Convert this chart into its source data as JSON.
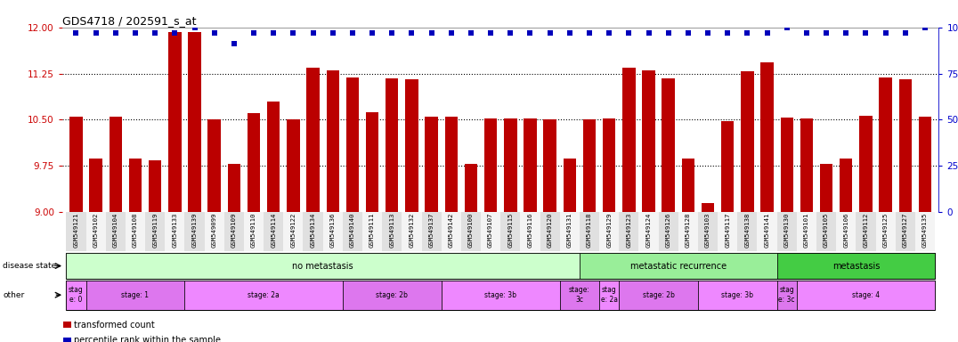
{
  "title": "GDS4718 / 202591_s_at",
  "samples": [
    "GSM549121",
    "GSM549102",
    "GSM549104",
    "GSM549108",
    "GSM549119",
    "GSM549133",
    "GSM549139",
    "GSM549099",
    "GSM549109",
    "GSM549110",
    "GSM549114",
    "GSM549122",
    "GSM549134",
    "GSM549136",
    "GSM549140",
    "GSM549111",
    "GSM549113",
    "GSM549132",
    "GSM549137",
    "GSM549142",
    "GSM549100",
    "GSM549107",
    "GSM549115",
    "GSM549116",
    "GSM549120",
    "GSM549131",
    "GSM549118",
    "GSM549129",
    "GSM549123",
    "GSM549124",
    "GSM549126",
    "GSM549128",
    "GSM549103",
    "GSM549117",
    "GSM549138",
    "GSM549141",
    "GSM549130",
    "GSM549101",
    "GSM549105",
    "GSM549106",
    "GSM549112",
    "GSM549125",
    "GSM549127",
    "GSM549135"
  ],
  "bar_values": [
    10.55,
    9.87,
    10.55,
    9.87,
    9.84,
    11.93,
    11.93,
    10.5,
    9.78,
    10.6,
    10.8,
    10.5,
    11.35,
    11.3,
    11.18,
    10.62,
    11.17,
    11.16,
    10.55,
    10.55,
    9.78,
    10.52,
    10.52,
    10.52,
    10.5,
    9.87,
    10.5,
    10.52,
    11.35,
    11.3,
    11.17,
    9.87,
    9.15,
    10.48,
    11.28,
    11.43,
    10.53,
    10.52,
    9.78,
    9.87,
    10.57,
    11.18,
    11.16,
    10.55
  ],
  "percentile_values": [
    97,
    97,
    97,
    97,
    97,
    97,
    100,
    97,
    91,
    97,
    97,
    97,
    97,
    97,
    97,
    97,
    97,
    97,
    97,
    97,
    97,
    97,
    97,
    97,
    97,
    97,
    97,
    97,
    97,
    97,
    97,
    97,
    97,
    97,
    97,
    97,
    100,
    97,
    97,
    97,
    97,
    97,
    97,
    100
  ],
  "ylim_left": [
    9.0,
    12.0
  ],
  "ylim_right": [
    0,
    100
  ],
  "yticks_left": [
    9.0,
    9.75,
    10.5,
    11.25,
    12.0
  ],
  "yticks_right": [
    0,
    25,
    50,
    75,
    100
  ],
  "dotted_lines": [
    9.75,
    10.5,
    11.25
  ],
  "bar_color": "#bb0000",
  "percentile_color": "#0000bb",
  "bar_bottom": 9.0,
  "disease_state_regions": [
    {
      "label": "no metastasis",
      "start": 0,
      "end": 26,
      "color": "#ccffcc"
    },
    {
      "label": "metastatic recurrence",
      "start": 26,
      "end": 36,
      "color": "#99ee99"
    },
    {
      "label": "metastasis",
      "start": 36,
      "end": 44,
      "color": "#44cc44"
    }
  ],
  "stage_regions": [
    {
      "label": "stag\ne: 0",
      "start": 0,
      "end": 1,
      "color": "#ee88ff"
    },
    {
      "label": "stage: 1",
      "start": 1,
      "end": 6,
      "color": "#dd77ee"
    },
    {
      "label": "stage: 2a",
      "start": 6,
      "end": 14,
      "color": "#ee88ff"
    },
    {
      "label": "stage: 2b",
      "start": 14,
      "end": 19,
      "color": "#dd77ee"
    },
    {
      "label": "stage: 3b",
      "start": 19,
      "end": 25,
      "color": "#ee88ff"
    },
    {
      "label": "stage:\n3c",
      "start": 25,
      "end": 27,
      "color": "#dd77ee"
    },
    {
      "label": "stag\ne: 2a",
      "start": 27,
      "end": 28,
      "color": "#ee88ff"
    },
    {
      "label": "stage: 2b",
      "start": 28,
      "end": 32,
      "color": "#dd77ee"
    },
    {
      "label": "stage: 3b",
      "start": 32,
      "end": 36,
      "color": "#ee88ff"
    },
    {
      "label": "stag\ne: 3c",
      "start": 36,
      "end": 37,
      "color": "#dd77ee"
    },
    {
      "label": "stage: 4",
      "start": 37,
      "end": 44,
      "color": "#ee88ff"
    }
  ],
  "legend_items": [
    {
      "label": "transformed count",
      "color": "#bb0000"
    },
    {
      "label": "percentile rank within the sample",
      "color": "#0000bb"
    }
  ],
  "background_color": "#ffffff",
  "tick_color_left": "#cc0000",
  "tick_color_right": "#0000cc",
  "fig_width": 10.76,
  "fig_height": 3.84,
  "dpi": 100
}
